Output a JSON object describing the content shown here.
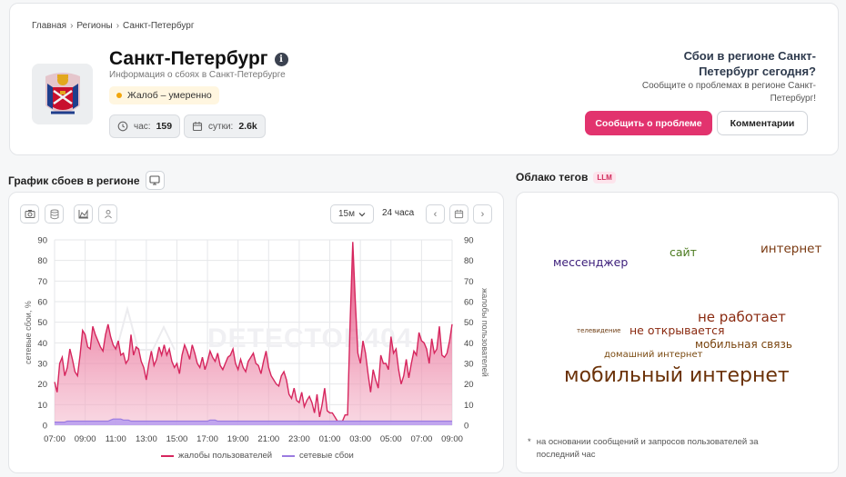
{
  "breadcrumbs": [
    "Главная",
    "Регионы",
    "Санкт-Петербург"
  ],
  "region": {
    "title": "Санкт-Петербург",
    "subtitle": "Информация о сбоях в Санкт-Петербурге",
    "level_badge": "Жалоб – умеренно",
    "stats": {
      "hour_label": "час:",
      "hour_value": "159",
      "day_label": "сутки:",
      "day_value": "2.6k"
    }
  },
  "cta": {
    "title": "Сбои в регионе Санкт-Петербург сегодня?",
    "subtitle": "Сообщите о проблемах в регионе Санкт-Петербург!",
    "report_button": "Сообщить о проблеме",
    "comments_button": "Комментарии"
  },
  "chart_section": {
    "title": "График сбоев в регионе",
    "interval": "15м",
    "range": "24 часа",
    "watermark": "DETECTOR404"
  },
  "cloud_section": {
    "title": "Облако тегов",
    "badge": "LLM",
    "tags": [
      {
        "text": "мессенджер",
        "color": "#3b1d7a"
      },
      {
        "text": "сайт",
        "color": "#4a7a1e"
      },
      {
        "text": "интернет",
        "color": "#7a3a12"
      },
      {
        "text": "не работает",
        "color": "#8a2a10"
      },
      {
        "text": "телевидение",
        "color": "#6b3a10"
      },
      {
        "text": "не открывается",
        "color": "#8a2a10"
      },
      {
        "text": "мобильная связь",
        "color": "#7a4510"
      },
      {
        "text": "домашний интернет",
        "color": "#7a4a10"
      },
      {
        "text": "мобильный интернет",
        "color": "#6b3208"
      }
    ],
    "note": "на основании сообщений и запросов пользователей за последний час"
  },
  "colors": {
    "accent": "#e2336e",
    "complaints": "#d6265e",
    "network": "#9b7be0"
  },
  "chart_data": {
    "type": "area",
    "y_left_label": "сетевые сбои, %",
    "y_right_label": "жалобы пользователей",
    "ylim": [
      0,
      90
    ],
    "y_ticks": [
      0,
      10,
      20,
      30,
      40,
      50,
      60,
      70,
      80,
      90
    ],
    "x_ticks": [
      "07:00",
      "09:00",
      "11:00",
      "13:00",
      "15:00",
      "17:00",
      "19:00",
      "21:00",
      "23:00",
      "01:00",
      "03:00",
      "05:00",
      "07:00",
      "09:00"
    ],
    "x_hours_from": "07:00",
    "x_hours_span": 26,
    "grid": true,
    "legend_position": "bottom",
    "series": [
      {
        "name": "жалобы пользователей",
        "values": [
          21,
          16,
          30,
          33,
          24,
          28,
          37,
          32,
          26,
          24,
          34,
          46,
          44,
          38,
          37,
          48,
          44,
          41,
          38,
          36,
          44,
          49,
          43,
          39,
          37,
          41,
          34,
          35,
          30,
          32,
          44,
          34,
          38,
          37,
          31,
          28,
          22,
          30,
          36,
          29,
          32,
          38,
          34,
          39,
          34,
          37,
          31,
          28,
          30,
          25,
          34,
          39,
          36,
          32,
          39,
          35,
          30,
          28,
          33,
          27,
          31,
          36,
          33,
          31,
          35,
          29,
          27,
          30,
          33,
          34,
          37,
          30,
          27,
          32,
          28,
          26,
          31,
          33,
          35,
          30,
          29,
          25,
          31,
          36,
          28,
          24,
          22,
          20,
          19,
          24,
          26,
          22,
          15,
          13,
          18,
          12,
          11,
          16,
          9,
          12,
          14,
          11,
          6,
          15,
          4,
          10,
          18,
          7,
          6,
          6,
          4,
          2,
          2,
          2,
          5,
          5,
          50,
          89,
          60,
          35,
          30,
          41,
          35,
          25,
          16,
          27,
          22,
          18,
          34,
          30,
          30,
          27,
          43,
          35,
          37,
          27,
          20,
          24,
          32,
          23,
          30,
          36,
          34,
          45,
          41,
          40,
          37,
          30,
          42,
          35,
          37,
          48,
          34,
          33,
          35,
          41,
          49
        ]
      },
      {
        "name": "сетевые сбои",
        "values": [
          1.5,
          1.5,
          1.5,
          1.5,
          1.5,
          2,
          2,
          2,
          2,
          2,
          2,
          2,
          2,
          2,
          2,
          2,
          2,
          2,
          2,
          2,
          2,
          2,
          2.5,
          3,
          3,
          3,
          3,
          2.5,
          2.5,
          2.5,
          2,
          2,
          2,
          2,
          2,
          2,
          2,
          2,
          2,
          2,
          2,
          2,
          2,
          2,
          2,
          2,
          2,
          2,
          2,
          2,
          2,
          2,
          2,
          2,
          2,
          2,
          2,
          2,
          2,
          2,
          2,
          2.5,
          2.5,
          2.5,
          2,
          2,
          2,
          2,
          2,
          2,
          2,
          2,
          2,
          2,
          2,
          2,
          2,
          2,
          2,
          2,
          2,
          2,
          2,
          2,
          2,
          2,
          2,
          2,
          2,
          2,
          2,
          2,
          2,
          2,
          2,
          2,
          2,
          2,
          2,
          2,
          2,
          2,
          2,
          2,
          2,
          2,
          2,
          2,
          2,
          2,
          2,
          2,
          2,
          2,
          2,
          2,
          2,
          2,
          2,
          2,
          2,
          2,
          2,
          2,
          2,
          2,
          2,
          2,
          2,
          2,
          2,
          2,
          2,
          2,
          2,
          2,
          2,
          2,
          2,
          2,
          2,
          2,
          2,
          2,
          2,
          2,
          2,
          2,
          2,
          2,
          2,
          2,
          2,
          2,
          2,
          2,
          2
        ]
      }
    ]
  }
}
